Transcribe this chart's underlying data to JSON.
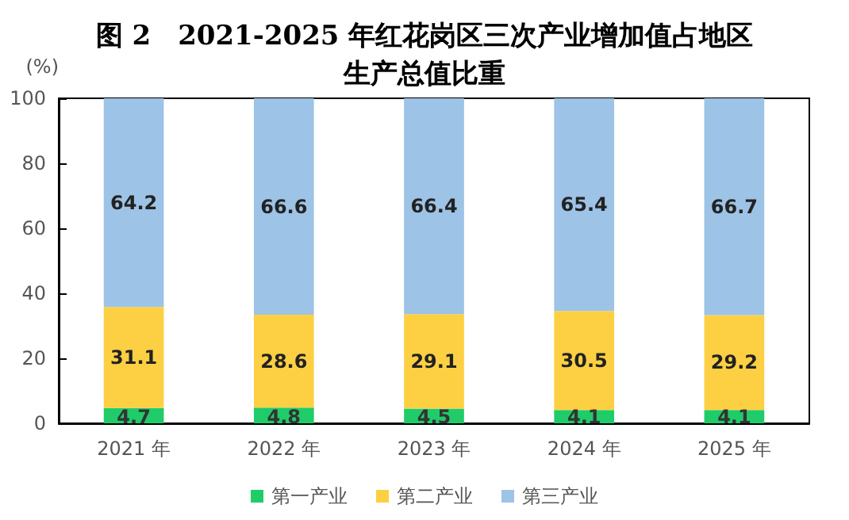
{
  "chart_data": {
    "type": "bar",
    "title": "图 2　2021-2025 年红花岗区三次产业增加值占地区生产总值比重",
    "ylabel": "(%)",
    "categories": [
      "2021 年",
      "2022 年",
      "2023 年",
      "2024 年",
      "2025 年"
    ],
    "stacked": true,
    "data_labels": true,
    "legend": "bottom",
    "grid": false,
    "ylim": [
      0,
      100
    ],
    "yticks": [
      0,
      20,
      40,
      60,
      80,
      100
    ],
    "series": [
      {
        "name": "第一产业",
        "color": "#1fcc69",
        "values": [
          4.7,
          4.8,
          4.5,
          4.1,
          4.1
        ]
      },
      {
        "name": "第二产业",
        "color": "#fdd043",
        "values": [
          31.1,
          28.6,
          29.1,
          30.5,
          29.2
        ]
      },
      {
        "name": "第三产业",
        "color": "#9dc3e6",
        "values": [
          64.2,
          66.6,
          66.4,
          65.4,
          66.7
        ]
      }
    ]
  }
}
